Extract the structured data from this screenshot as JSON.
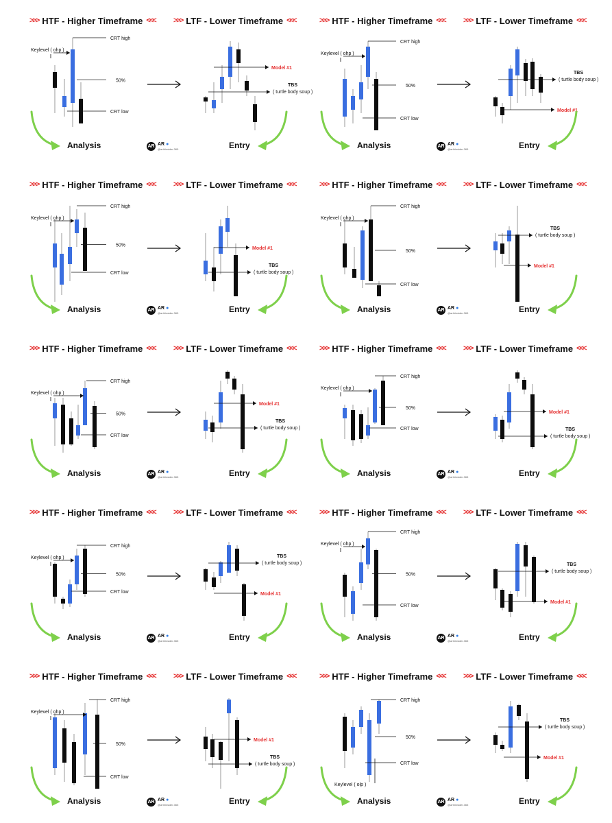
{
  "htf_title": "HTF - Higher Timeframe",
  "ltf_title": "LTF - Lower Timeframe",
  "chevrons_right": ">>>",
  "chevrons_left": "<<<",
  "analysis_label": "Analysis",
  "entry_label": "Entry",
  "brand": {
    "initials": "AR",
    "name": "AR",
    "handle": "@arthinsider.365"
  },
  "labels": {
    "keylevel_ohp": "Keylevel ( ohp )",
    "keylevel_olp": "Keylevel ( olp )",
    "crt_high": "CRT high",
    "crt_low": "CRT low",
    "fifty": "50%",
    "model1": "Model #1",
    "tbs": "TBS",
    "tbs_full": "( turtle body soup )"
  },
  "colors": {
    "bull": "#3a6ee0",
    "bear": "#0d0d0d",
    "accent": "#e53030",
    "arrow": "#7ed04b"
  },
  "panels": [
    {
      "id": 1,
      "keylevel": "ohp"
    },
    {
      "id": 2,
      "keylevel": "ohp"
    },
    {
      "id": 3,
      "keylevel": "ohp"
    },
    {
      "id": 4,
      "keylevel": "ohp"
    },
    {
      "id": 5,
      "keylevel": "ohp"
    },
    {
      "id": 6,
      "keylevel": "ohp"
    },
    {
      "id": 7,
      "keylevel": "ohp"
    },
    {
      "id": 8,
      "keylevel": "ohp"
    },
    {
      "id": 9,
      "keylevel": "ohp"
    },
    {
      "id": 10,
      "keylevel": "olp"
    }
  ]
}
